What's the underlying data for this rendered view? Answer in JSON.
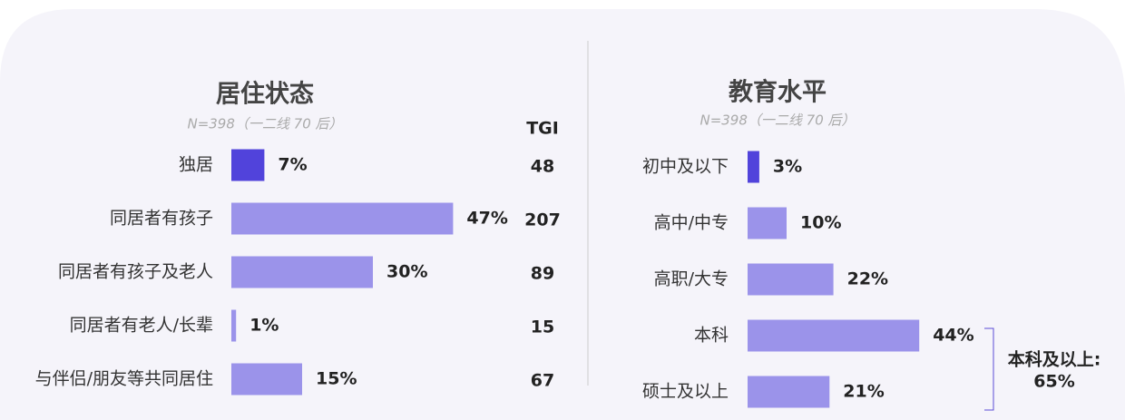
{
  "chart_data": [
    {
      "type": "bar",
      "orientation": "horizontal",
      "title": "居住状态",
      "subtitle": "N=398（一二线 70 后）",
      "categories": [
        "独居",
        "同居者有孩子",
        "同居者有孩子及老人",
        "同居者有老人/长辈",
        "与伴侣/朋友等共同居住"
      ],
      "values": [
        7,
        47,
        30,
        1,
        15
      ],
      "value_labels": [
        "7%",
        "47%",
        "30%",
        "1%",
        "15%"
      ],
      "colors": [
        "#5143db",
        "#9b93ea",
        "#9b93ea",
        "#9b93ea",
        "#9b93ea"
      ],
      "tgi_label": "TGI",
      "tgi": [
        48,
        207,
        89,
        15,
        67
      ],
      "tgi_colors": [
        "#111111",
        "#5a4bd6",
        "#111111",
        "#111111",
        "#111111"
      ]
    },
    {
      "type": "bar",
      "orientation": "horizontal",
      "title": "教育水平",
      "subtitle": "N=398（一二线 70 后）",
      "categories": [
        "初中及以下",
        "高中/中专",
        "高职/大专",
        "本科",
        "硕士及以上"
      ],
      "values": [
        3,
        10,
        22,
        44,
        21
      ],
      "value_labels": [
        "3%",
        "10%",
        "22%",
        "44%",
        "21%"
      ],
      "colors": [
        "#5143db",
        "#9b93ea",
        "#9b93ea",
        "#9b93ea",
        "#9b93ea"
      ],
      "annotation": [
        "本科及以上:",
        "65%"
      ],
      "annotation_color": "#5a4bd6"
    }
  ]
}
